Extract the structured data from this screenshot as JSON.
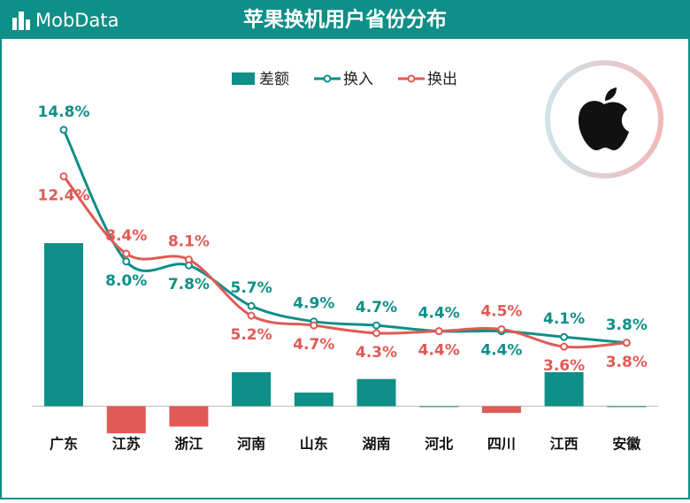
{
  "brand": "MobData",
  "chart_data": {
    "type": "combo",
    "title": "苹果换机用户省份分布",
    "categories": [
      "广东",
      "江苏",
      "浙江",
      "河南",
      "山东",
      "湖南",
      "河北",
      "四川",
      "江西",
      "安徽"
    ],
    "series": [
      {
        "name": "差额",
        "type": "bar",
        "axis": "y2",
        "color": "#0e8f87",
        "negative_color": "#e05a55",
        "values": [
          2.4,
          -0.4,
          -0.3,
          0.5,
          0.2,
          0.4,
          0.0,
          -0.1,
          0.5,
          0.0
        ]
      },
      {
        "name": "换入",
        "type": "line",
        "color": "#0e8f87",
        "values": [
          14.8,
          8.0,
          7.8,
          5.7,
          4.9,
          4.7,
          4.4,
          4.4,
          4.1,
          3.8
        ],
        "value_labels": [
          "14.8%",
          "8.0%",
          "7.8%",
          "5.7%",
          "4.9%",
          "4.7%",
          "4.4%",
          "4.4%",
          "4.1%",
          "3.8%"
        ]
      },
      {
        "name": "换出",
        "type": "line",
        "color": "#e05a55",
        "values": [
          12.4,
          8.4,
          8.1,
          5.2,
          4.7,
          4.3,
          4.4,
          4.5,
          3.6,
          3.8
        ],
        "value_labels": [
          "12.4%",
          "8.4%",
          "8.1%",
          "5.2%",
          "4.7%",
          "4.3%",
          "4.4%",
          "4.5%",
          "3.6%",
          "3.8%"
        ]
      }
    ],
    "ylim": [
      0,
      20
    ],
    "y2lim": [
      -0.15,
      5.55
    ]
  }
}
